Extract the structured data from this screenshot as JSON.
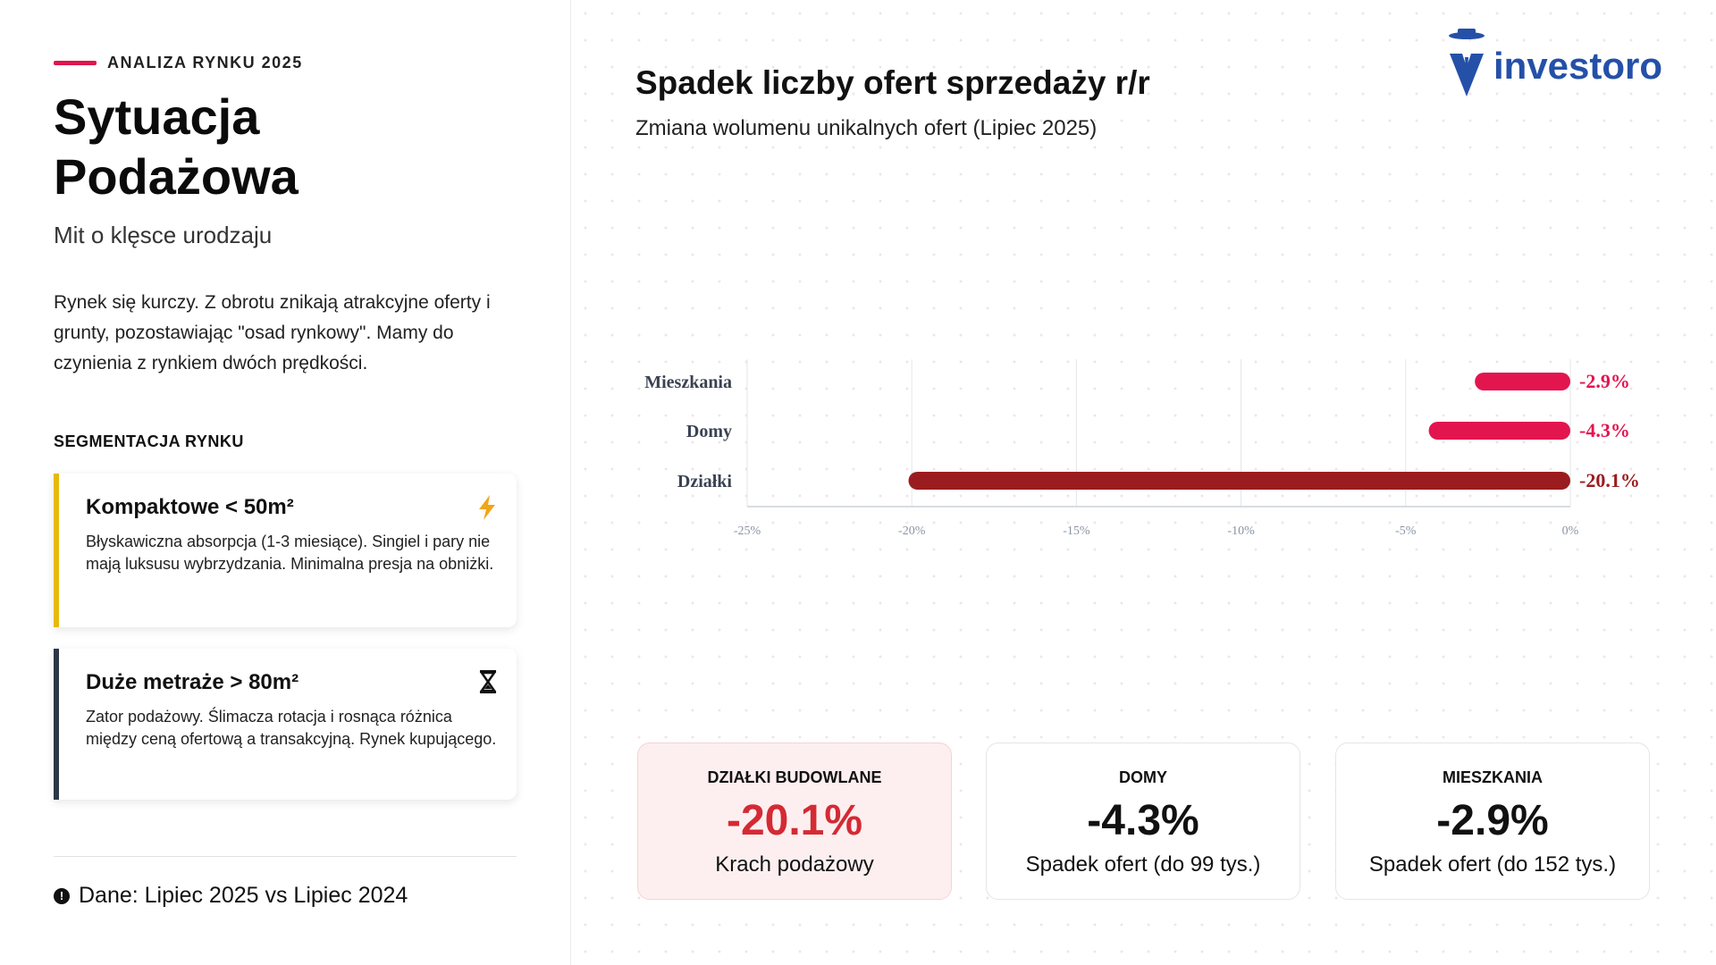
{
  "left": {
    "kicker": "ANALIZA RYNKU 2025",
    "title": "Sytuacja Podażowa",
    "subtitle": "Mit o klęsce urodzaju",
    "paragraph": "Rynek się kurczy. Z obrotu znikają atrakcyjne oferty i grunty, pozostawiając \"osad rynkowy\". Mamy do czynienia z rynkiem dwóch prędkości.",
    "segment_heading": "SEGMENTACJA RYNKU",
    "cards": [
      {
        "title": "Kompaktowe < 50m²",
        "text": "Błyskawiczna absorpcja (1-3 miesiące). Singiel i pary nie mają luksusu wybrzydzania. Minimalna presja na obniżki.",
        "icon": "lightning-icon",
        "accent": "#e6b90c"
      },
      {
        "title": "Duże metraże > 80m²",
        "text": "Zator podażowy. Ślimacza rotacja i rosnąca różnica między ceną ofertową a transakcyjną. Rynek kupującego.",
        "icon": "hourglass-icon",
        "accent": "#2c3646"
      }
    ],
    "footer": "Dane: Lipiec 2025 vs Lipiec 2024"
  },
  "right": {
    "title": "Spadek liczby ofert sprzedaży r/r",
    "subtitle": "Zmiana wolumenu unikalnych ofert (Lipiec 2025)",
    "logo": "investoro",
    "stats": [
      {
        "label": "DZIAŁKI BUDOWLANE",
        "value": "-20.1%",
        "desc": "Krach podażowy",
        "color": "#d42a34"
      },
      {
        "label": "DOMY",
        "value": "-4.3%",
        "desc": "Spadek ofert (do 99 tys.)",
        "color": "#111111"
      },
      {
        "label": "MIESZKANIA",
        "value": "-2.9%",
        "desc": "Spadek ofert (do 152 tys.)",
        "color": "#111111"
      }
    ]
  },
  "chart_data": {
    "type": "bar",
    "orientation": "horizontal",
    "categories": [
      "Mieszkania",
      "Domy",
      "Działki"
    ],
    "values": [
      -2.9,
      -4.3,
      -20.1
    ],
    "labels": [
      "-2.9%",
      "-4.3%",
      "-20.1%"
    ],
    "colors": [
      "#e3154f",
      "#e3154f",
      "#9b1c1f"
    ],
    "xlim": [
      -25,
      0
    ],
    "xticks": [
      -25,
      -20,
      -15,
      -10,
      -5,
      0
    ],
    "xtick_labels": [
      "-25%",
      "-20%",
      "-15%",
      "-10%",
      "-5%",
      "0%"
    ],
    "grid": true
  }
}
